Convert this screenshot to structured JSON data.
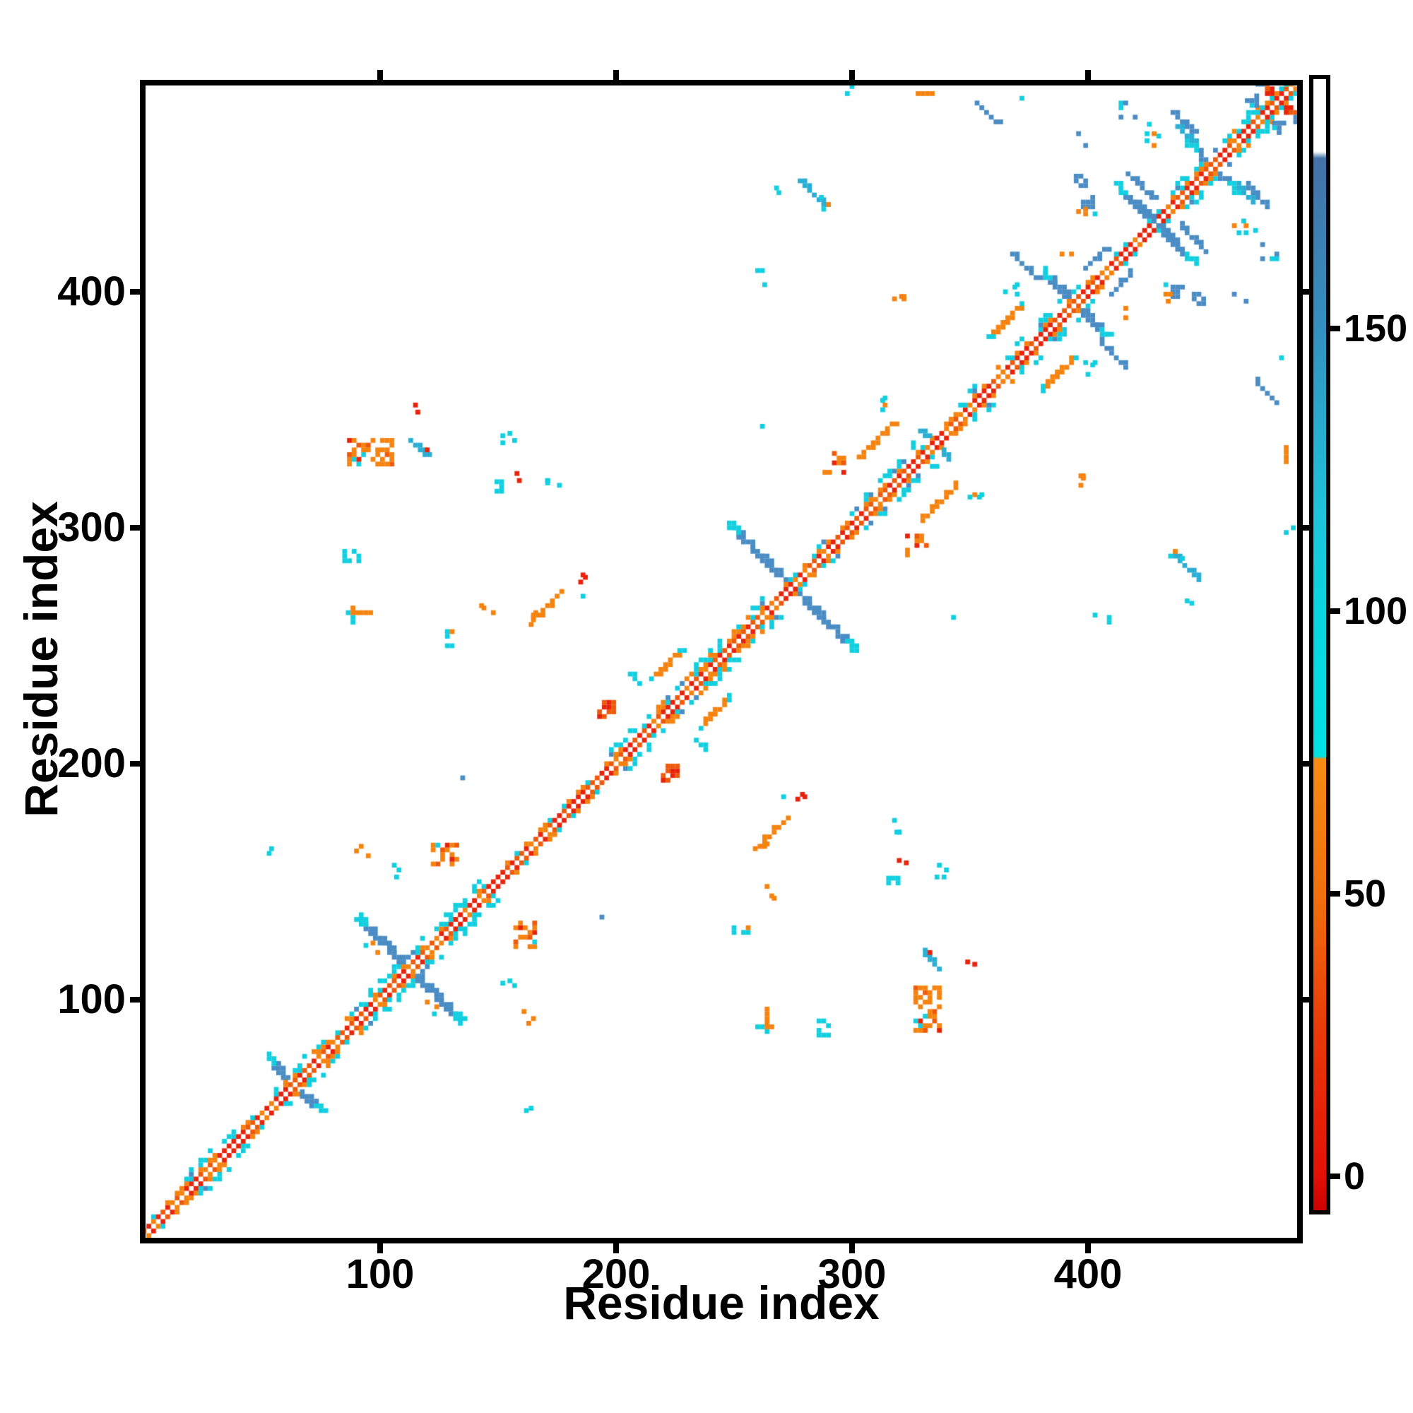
{
  "chart_data": {
    "type": "heatmap",
    "title": "",
    "xlabel": "Residue index",
    "ylabel": "Residue index",
    "x_ticks": [
      100,
      200,
      300,
      400
    ],
    "y_ticks": [
      100,
      200,
      300,
      400
    ],
    "axis_range": [
      0,
      490
    ],
    "grid": false,
    "legend_position": "right-colorbar",
    "colorbar": {
      "ticks": [
        0,
        50,
        100,
        150
      ],
      "tick_labels": [
        "0",
        "50",
        "100",
        "150"
      ],
      "value_range": [
        0,
        185
      ],
      "gradient_stops": [
        [
          0.0,
          "#cc0100"
        ],
        [
          0.03,
          "#e31005"
        ],
        [
          0.16,
          "#ea3a08"
        ],
        [
          0.28,
          "#f0700e"
        ],
        [
          0.399,
          "#f78c13"
        ],
        [
          0.401,
          "#00e1e2"
        ],
        [
          0.53,
          "#0ad5e0"
        ],
        [
          0.62,
          "#1fc2da"
        ],
        [
          0.78,
          "#3390c0"
        ],
        [
          0.93,
          "#4472a8"
        ],
        [
          0.936,
          "#ffffff"
        ],
        [
          1.0,
          "#ffffff"
        ]
      ]
    },
    "palette": {
      "red": "#e8230b",
      "orange_red": "#ee5a0c",
      "orange": "#f5830f",
      "cyan": "#12cfe0",
      "teal": "#2aaed4",
      "blue": "#4a8cc4",
      "steel": "#3c7ab0",
      "white": "#ffffff"
    },
    "symmetric": true,
    "diagonal_band": {
      "range": [
        0,
        489
      ],
      "wide_regions": [
        [
          18,
          40
        ],
        [
          56,
          76
        ],
        [
          86,
          142
        ],
        [
          198,
          262
        ],
        [
          286,
          322
        ],
        [
          344,
          396
        ],
        [
          434,
          472
        ]
      ]
    },
    "antidiagonal_crosses": [
      {
        "center": 64,
        "half_len": 12,
        "style": "blue"
      },
      {
        "center": 113,
        "half_len": 22,
        "style": "blue"
      },
      {
        "center": 275,
        "half_len": 26,
        "style": "blue"
      },
      {
        "center": 336,
        "half_len": 6,
        "style": "teal"
      },
      {
        "center": 395,
        "half_len": 14,
        "style": "blue"
      },
      {
        "center": 429,
        "half_len": 16,
        "style": "blue"
      },
      {
        "center": 453,
        "half_len": 11,
        "style": "blue"
      },
      {
        "center": 481,
        "half_len": 11,
        "style": "warm"
      }
    ],
    "features": [
      {
        "i": 96,
        "j": 332,
        "t": "clu",
        "c": "orangemix",
        "w": 18,
        "h": 10,
        "d": 0.5
      },
      {
        "i": 128,
        "j": 162,
        "t": "clu",
        "c": "orangemix",
        "w": 11,
        "h": 9,
        "d": 0.42
      },
      {
        "i": 293,
        "j": 328,
        "t": "clu",
        "c": "orangemix",
        "w": 9,
        "h": 9,
        "d": 0.38
      },
      {
        "i": 196,
        "j": 223,
        "t": "clu",
        "c": "redmix",
        "w": 6,
        "h": 6,
        "d": 0.8
      },
      {
        "i": 171,
        "j": 267,
        "t": "par",
        "c": "orange",
        "L": 6
      },
      {
        "i": 221,
        "j": 242,
        "t": "par",
        "c": "orange",
        "L": 6,
        "tip": 1
      },
      {
        "i": 310,
        "j": 337,
        "t": "par",
        "c": "orange",
        "L": 7
      },
      {
        "i": 365,
        "j": 388,
        "t": "par",
        "c": "orange",
        "L": 7,
        "tip": 1
      },
      {
        "i": 373,
        "j": 411,
        "t": "anti",
        "c": "blue",
        "L": 5
      },
      {
        "i": 425,
        "j": 433,
        "t": "anti",
        "c": "blue",
        "L": 5
      },
      {
        "i": 422,
        "j": 445,
        "t": "anti",
        "c": "blue",
        "L": 5
      },
      {
        "i": 440,
        "j": 472,
        "t": "anti",
        "c": "blue",
        "L": 4
      },
      {
        "i": 441,
        "j": 467,
        "t": "anti",
        "c": "teal",
        "L": 3
      },
      {
        "i": 283,
        "j": 442,
        "t": "anti",
        "c": "teal",
        "L": 5
      },
      {
        "i": 357,
        "j": 476,
        "t": "anti",
        "c": "blue",
        "L": 4
      },
      {
        "i": 403,
        "j": 414,
        "t": "par",
        "c": "blue",
        "L": 4
      },
      {
        "i": 116,
        "j": 334,
        "t": "anti",
        "c": "teal",
        "L": 3
      },
      {
        "i": 152,
        "j": 318,
        "t": "clu",
        "c": "cyan",
        "w": 5,
        "h": 5,
        "d": 0.55
      },
      {
        "i": 129,
        "j": 253,
        "t": "clu",
        "c": "cyanmix",
        "w": 5,
        "h": 6,
        "d": 0.5
      },
      {
        "i": 88,
        "j": 288,
        "t": "clu",
        "c": "cyan",
        "w": 6,
        "h": 4,
        "d": 0.6
      },
      {
        "i": 88,
        "j": 263,
        "t": "clu",
        "c": "cyanmix",
        "w": 3,
        "h": 6,
        "d": 0.7
      },
      {
        "i": 417,
        "j": 477,
        "t": "clu",
        "c": "bluemix",
        "w": 6,
        "h": 6,
        "d": 0.5
      },
      {
        "i": 470,
        "j": 481,
        "t": "clu",
        "c": "bluemix",
        "w": 5,
        "h": 4,
        "d": 0.5
      },
      {
        "i": 397,
        "j": 447,
        "t": "clu",
        "c": "blue",
        "w": 4,
        "h": 4,
        "d": 0.85
      },
      {
        "i": 400,
        "j": 438,
        "t": "clu",
        "c": "blue",
        "w": 4,
        "h": 4,
        "d": 0.85
      },
      {
        "i": 208,
        "j": 236,
        "t": "clu",
        "c": "cyan",
        "w": 4,
        "h": 4,
        "d": 0.5
      },
      {
        "i": 116,
        "j": 349,
        "t": "dot",
        "c": "red"
      },
      {
        "i": 120,
        "j": 333,
        "t": "dot",
        "c": "red"
      },
      {
        "i": 115,
        "j": 352,
        "t": "dot",
        "c": "red"
      },
      {
        "i": 154,
        "j": 338,
        "t": "dots",
        "c": "cyan"
      },
      {
        "i": 158,
        "j": 323,
        "t": "dots",
        "c": "red"
      },
      {
        "i": 173,
        "j": 318,
        "t": "dots",
        "c": "cyan"
      },
      {
        "i": 145,
        "j": 267,
        "t": "dots",
        "c": "orange"
      },
      {
        "i": 166,
        "j": 261,
        "t": "dots",
        "c": "orange"
      },
      {
        "i": 186,
        "j": 280,
        "t": "dots",
        "c": "red"
      },
      {
        "i": 186,
        "j": 271,
        "t": "dot",
        "c": "cyan"
      },
      {
        "i": 90,
        "j": 264,
        "t": "dash",
        "c": "orange",
        "L": 3
      },
      {
        "i": 135,
        "j": 194,
        "t": "dot",
        "c": "blue"
      },
      {
        "i": 108,
        "j": 155,
        "t": "dots",
        "c": "cyan"
      },
      {
        "i": 92,
        "j": 162,
        "t": "dots",
        "c": "orange"
      },
      {
        "i": 97,
        "j": 122,
        "t": "dots",
        "c": "mix"
      },
      {
        "i": 312,
        "j": 355,
        "t": "dots",
        "c": "mix"
      },
      {
        "i": 321,
        "j": 398,
        "t": "dots",
        "c": "orange"
      },
      {
        "i": 313,
        "j": 350,
        "t": "dot",
        "c": "cyan"
      },
      {
        "i": 325,
        "j": 337,
        "t": "dots",
        "c": "cyan"
      },
      {
        "i": 368,
        "j": 400,
        "t": "dots",
        "c": "cyan"
      },
      {
        "i": 391,
        "j": 413,
        "t": "dots",
        "c": "orange"
      },
      {
        "i": 268,
        "j": 444,
        "t": "dots",
        "c": "cyan"
      },
      {
        "i": 289,
        "j": 437,
        "t": "dots",
        "c": "mix"
      },
      {
        "i": 372,
        "j": 482,
        "t": "dot",
        "c": "cyan"
      },
      {
        "i": 428,
        "j": 469,
        "t": "dots",
        "c": "cyan"
      },
      {
        "i": 398,
        "j": 465,
        "t": "dots",
        "c": "blue"
      },
      {
        "i": 427,
        "j": 464,
        "t": "dots",
        "c": "mix"
      },
      {
        "i": 399,
        "j": 433,
        "t": "dots",
        "c": "orange"
      },
      {
        "i": 403,
        "j": 433,
        "t": "dot",
        "c": "cyan"
      },
      {
        "i": 263,
        "j": 406,
        "t": "dots",
        "c": "cyan"
      },
      {
        "i": 262,
        "j": 343,
        "t": "dot",
        "c": "cyan"
      },
      {
        "i": 297,
        "j": 486,
        "t": "dots",
        "c": "cyan"
      },
      {
        "i": 328,
        "j": 484,
        "t": "dash",
        "c": "orange",
        "L": 3
      },
      {
        "i": 56,
        "j": 164,
        "t": "dots",
        "c": "cyan"
      }
    ]
  }
}
